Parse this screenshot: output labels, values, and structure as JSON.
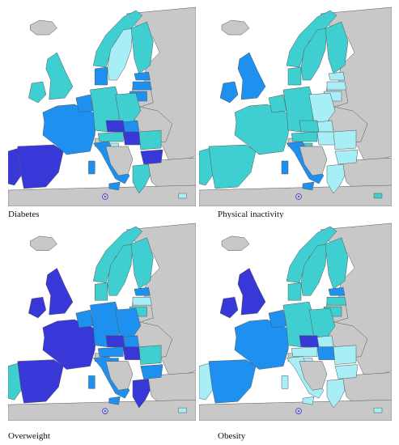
{
  "legend_colors": {
    "non_eu": "#c8c8c8",
    "level_1": "#a7eef6",
    "level_2": "#3fcfd0",
    "level_3": "#1e90f0",
    "level_4": "#3838d8"
  },
  "maps": [
    {
      "key": "diabetes",
      "label": "Diabetes",
      "countries": {
        "ireland": "level_2",
        "uk": "level_2",
        "portugal": "level_4",
        "spain": "level_4",
        "france": "level_3",
        "benelux": "level_3",
        "germany": "level_2",
        "denmark": "level_3",
        "norway": "level_2",
        "sweden": "level_1",
        "finland": "level_2",
        "estonia": "level_3",
        "latvia": "level_3",
        "lithuania": "level_3",
        "poland": "level_2",
        "czechia": "level_4",
        "slovakia": "level_3",
        "austria": "level_2",
        "hungary": "level_4",
        "italy": "level_3",
        "slovenia": "level_1",
        "croatia": "level_2",
        "romania": "level_2",
        "bulgaria": "level_4",
        "greece": "level_2",
        "cyprus": "level_1",
        "balkans": "non_eu"
      }
    },
    {
      "key": "physical",
      "label": "Physical inactivity",
      "countries": {
        "ireland": "level_3",
        "uk": "level_3",
        "portugal": "level_2",
        "spain": "level_2",
        "france": "level_2",
        "benelux": "level_2",
        "germany": "level_2",
        "denmark": "level_2",
        "norway": "level_2",
        "sweden": "level_2",
        "finland": "level_2",
        "estonia": "level_1",
        "latvia": "level_1",
        "lithuania": "level_1",
        "poland": "level_1",
        "czechia": "level_2",
        "slovakia": "level_1",
        "austria": "level_2",
        "hungary": "level_1",
        "italy": "level_3",
        "slovenia": "level_2",
        "croatia": "level_1",
        "romania": "level_1",
        "bulgaria": "level_1",
        "greece": "level_1",
        "cyprus": "level_2",
        "balkans": "non_eu"
      }
    },
    {
      "key": "overweight",
      "label": "Overweight",
      "countries": {
        "ireland": "level_4",
        "uk": "level_4",
        "portugal": "level_2",
        "spain": "level_4",
        "france": "level_4",
        "benelux": "level_3",
        "germany": "level_3",
        "denmark": "level_2",
        "norway": "level_2",
        "sweden": "level_2",
        "finland": "level_2",
        "estonia": "level_3",
        "latvia": "level_1",
        "lithuania": "level_2",
        "poland": "level_3",
        "czechia": "level_4",
        "slovakia": "level_3",
        "austria": "level_3",
        "hungary": "level_4",
        "italy": "level_3",
        "slovenia": "level_3",
        "croatia": "level_4",
        "romania": "level_2",
        "bulgaria": "level_3",
        "greece": "level_4",
        "cyprus": "level_1",
        "balkans": "non_eu"
      }
    },
    {
      "key": "obesity",
      "label": "Obesity",
      "countries": {
        "ireland": "level_4",
        "uk": "level_4",
        "portugal": "level_1",
        "spain": "level_3",
        "france": "level_3",
        "benelux": "level_3",
        "germany": "level_2",
        "denmark": "level_2",
        "norway": "level_2",
        "sweden": "level_2",
        "finland": "level_2",
        "estonia": "level_3",
        "latvia": "level_2",
        "lithuania": "level_2",
        "poland": "level_2",
        "czechia": "level_4",
        "slovakia": "level_1",
        "austria": "level_1",
        "hungary": "level_3",
        "italy": "level_1",
        "slovenia": "level_1",
        "croatia": "level_2",
        "romania": "level_1",
        "bulgaria": "level_1",
        "greece": "level_1",
        "cyprus": "level_1",
        "balkans": "non_eu"
      }
    }
  ]
}
